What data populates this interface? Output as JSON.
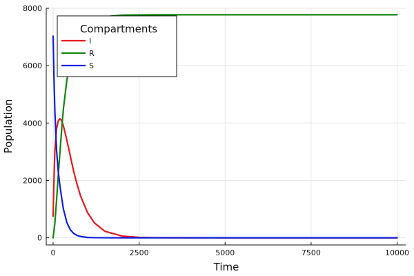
{
  "chart_data": {
    "type": "line",
    "xlabel": "Time",
    "ylabel": "Population",
    "xlim": [
      -200,
      10250
    ],
    "ylim": [
      -250,
      8000
    ],
    "xticks": [
      0,
      2500,
      5000,
      7500,
      10000
    ],
    "xtick_labels": [
      "0",
      "2500",
      "5000",
      "7500",
      "10000"
    ],
    "yticks": [
      0,
      2000,
      4000,
      6000,
      8000
    ],
    "ytick_labels": [
      "0",
      "2000",
      "4000",
      "6000",
      "8000"
    ],
    "grid": true,
    "legend": {
      "title": "Compartments",
      "position": "top-left"
    },
    "series": [
      {
        "name": "I",
        "color": "#e6191d",
        "x": [
          0,
          25,
          50,
          100,
          150,
          200,
          250,
          300,
          400,
          500,
          600,
          700,
          800,
          1000,
          1200,
          1500,
          2000,
          2500,
          3000,
          5000,
          7500,
          10000
        ],
        "y": [
          750,
          2000,
          3000,
          3800,
          4080,
          4150,
          4080,
          3900,
          3400,
          2850,
          2300,
          1850,
          1450,
          880,
          520,
          230,
          60,
          15,
          4,
          0,
          0,
          0
        ]
      },
      {
        "name": "R",
        "color": "#10860f",
        "x": [
          0,
          50,
          100,
          150,
          200,
          250,
          300,
          400,
          500,
          600,
          700,
          800,
          1000,
          1200,
          1500,
          2000,
          2500,
          3000,
          5000,
          7500,
          10000
        ],
        "y": [
          0,
          500,
          1300,
          2200,
          3000,
          3800,
          4500,
          5500,
          6200,
          6700,
          7000,
          7250,
          7500,
          7620,
          7710,
          7760,
          7770,
          7775,
          7775,
          7775,
          7775
        ]
      },
      {
        "name": "S",
        "color": "#1020e0",
        "x": [
          0,
          25,
          50,
          100,
          150,
          200,
          250,
          300,
          400,
          500,
          600,
          700,
          800,
          1000,
          1200,
          1500,
          2000,
          3000,
          5000,
          7500,
          10000
        ],
        "y": [
          7030,
          5600,
          4450,
          3050,
          2300,
          1800,
          1380,
          1000,
          530,
          280,
          150,
          80,
          45,
          12,
          4,
          1,
          0,
          0,
          0,
          0,
          0
        ]
      }
    ]
  }
}
